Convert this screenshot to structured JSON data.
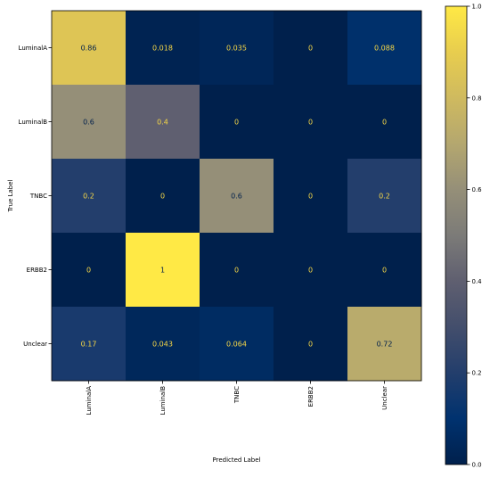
{
  "chart_data": {
    "type": "heatmap",
    "title": "",
    "xlabel": "Predicted Label",
    "ylabel": "True Label",
    "x_categories": [
      "LuminalA",
      "LuminalB",
      "TNBC",
      "ERBB2",
      "Unclear"
    ],
    "y_categories": [
      "LuminalA",
      "LuminalB",
      "TNBC",
      "ERBB2",
      "Unclear"
    ],
    "values": [
      [
        0.86,
        0.018,
        0.035,
        0,
        0.088
      ],
      [
        0.6,
        0.4,
        0,
        0,
        0
      ],
      [
        0.2,
        0,
        0.6,
        0,
        0.2
      ],
      [
        0,
        1,
        0,
        0,
        0
      ],
      [
        0.17,
        0.043,
        0.064,
        0,
        0.72
      ]
    ],
    "value_labels": [
      [
        "0.86",
        "0.018",
        "0.035",
        "0",
        "0.088"
      ],
      [
        "0.6",
        "0.4",
        "0",
        "0",
        "0"
      ],
      [
        "0.2",
        "0",
        "0.6",
        "0",
        "0.2"
      ],
      [
        "0",
        "1",
        "0",
        "0",
        "0"
      ],
      [
        "0.17",
        "0.043",
        "0.064",
        "0",
        "0.72"
      ]
    ],
    "colormap": "cividis",
    "colorbar": {
      "range": [
        0,
        1
      ],
      "ticks": [
        0.0,
        0.2,
        0.4,
        0.6,
        0.8,
        1.0
      ],
      "tick_labels": [
        "0.0",
        "0.2",
        "0.4",
        "0.6",
        "0.8",
        "1.0"
      ]
    },
    "colors": {
      "low": "#00204c",
      "high": "#ffe945",
      "text_on_dark": "#f6d746",
      "text_on_light": "#00204c"
    }
  }
}
